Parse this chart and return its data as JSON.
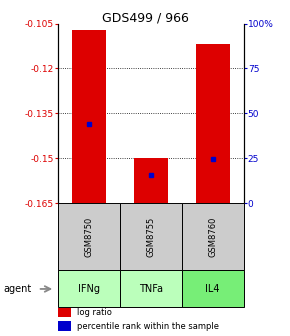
{
  "title": "GDS499 / 966",
  "samples": [
    "GSM8750",
    "GSM8755",
    "GSM8760"
  ],
  "agents": [
    "IFNg",
    "TNFa",
    "IL4"
  ],
  "log_ratios": [
    -0.107,
    -0.15,
    -0.112
  ],
  "percentile_ranks": [
    0.44,
    0.155,
    0.245
  ],
  "bar_bottom": -0.165,
  "ylim": [
    -0.165,
    -0.105
  ],
  "yticks_left": [
    -0.165,
    -0.15,
    -0.135,
    -0.12,
    -0.105
  ],
  "yticks_right_vals": [
    0,
    25,
    50,
    75,
    100
  ],
  "grid_yticks": [
    -0.12,
    -0.135,
    -0.15
  ],
  "bar_color": "#dd0000",
  "percentile_color": "#0000cc",
  "sample_box_color": "#cccccc",
  "agent_colors": [
    "#bbffbb",
    "#bbffbb",
    "#77ee77"
  ],
  "left_label_color": "#dd0000",
  "right_label_color": "#0000cc",
  "bar_width": 0.55
}
